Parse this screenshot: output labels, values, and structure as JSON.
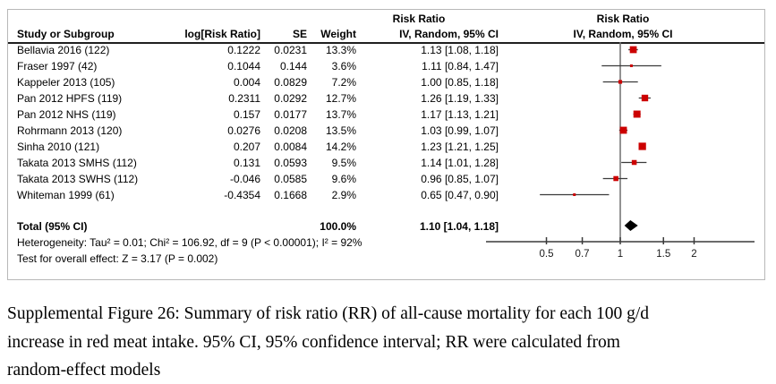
{
  "figure": {
    "header": {
      "study": "Study or Subgroup",
      "log_rr": "log[Risk Ratio]",
      "se": "SE",
      "weight": "Weight",
      "ci_col_line1": "Risk Ratio",
      "ci_col_line2": "IV, Random, 95% CI",
      "plot_col_line1": "Risk Ratio",
      "plot_col_line2": "IV, Random, 95% CI"
    },
    "footer": {
      "heterogeneity": "Heterogeneity: Tau² = 0.01; Chi² = 106.92, df = 9 (P < 0.00001); I² = 92%",
      "overall_test": "Test for overall effect: Z = 3.17 (P = 0.002)"
    }
  },
  "chart_data": {
    "type": "forest",
    "effect_measure": "Risk Ratio",
    "model": "IV, Random, 95% CI",
    "x_scale": "log",
    "x_ticks": [
      0.5,
      0.7,
      1,
      1.5,
      2
    ],
    "x_tick_labels": [
      "0.5",
      "0.7",
      "1",
      "1.5",
      "2"
    ],
    "null_value": 1,
    "marker_color": "#cc0000",
    "diamond_color": "#000000",
    "studies": [
      {
        "study": "Bellavia 2016 (122)",
        "log_rr": "0.1222",
        "se": "0.0231",
        "weight": "13.3%",
        "weight_pct": 13.3,
        "ci_text": "1.13 [1.08, 1.18]",
        "rr": 1.13,
        "lo": 1.08,
        "hi": 1.18
      },
      {
        "study": "Fraser 1997 (42)",
        "log_rr": "0.1044",
        "se": "0.144",
        "weight": "3.6%",
        "weight_pct": 3.6,
        "ci_text": "1.11 [0.84, 1.47]",
        "rr": 1.11,
        "lo": 0.84,
        "hi": 1.47
      },
      {
        "study": "Kappeler 2013 (105)",
        "log_rr": "0.004",
        "se": "0.0829",
        "weight": "7.2%",
        "weight_pct": 7.2,
        "ci_text": "1.00 [0.85, 1.18]",
        "rr": 1.0,
        "lo": 0.85,
        "hi": 1.18
      },
      {
        "study": "Pan 2012 HPFS (119)",
        "log_rr": "0.2311",
        "se": "0.0292",
        "weight": "12.7%",
        "weight_pct": 12.7,
        "ci_text": "1.26 [1.19, 1.33]",
        "rr": 1.26,
        "lo": 1.19,
        "hi": 1.33
      },
      {
        "study": "Pan 2012 NHS (119)",
        "log_rr": "0.157",
        "se": "0.0177",
        "weight": "13.7%",
        "weight_pct": 13.7,
        "ci_text": "1.17 [1.13, 1.21]",
        "rr": 1.17,
        "lo": 1.13,
        "hi": 1.21
      },
      {
        "study": "Rohrmann 2013 (120)",
        "log_rr": "0.0276",
        "se": "0.0208",
        "weight": "13.5%",
        "weight_pct": 13.5,
        "ci_text": "1.03 [0.99, 1.07]",
        "rr": 1.03,
        "lo": 0.99,
        "hi": 1.07
      },
      {
        "study": "Sinha 2010 (121)",
        "log_rr": "0.207",
        "se": "0.0084",
        "weight": "14.2%",
        "weight_pct": 14.2,
        "ci_text": "1.23 [1.21, 1.25]",
        "rr": 1.23,
        "lo": 1.21,
        "hi": 1.25
      },
      {
        "study": "Takata 2013 SMHS (112)",
        "log_rr": "0.131",
        "se": "0.0593",
        "weight": "9.5%",
        "weight_pct": 9.5,
        "ci_text": "1.14 [1.01, 1.28]",
        "rr": 1.14,
        "lo": 1.01,
        "hi": 1.28
      },
      {
        "study": "Takata 2013 SWHS (112)",
        "log_rr": "-0.046",
        "se": "0.0585",
        "weight": "9.6%",
        "weight_pct": 9.6,
        "ci_text": "0.96 [0.85, 1.07]",
        "rr": 0.96,
        "lo": 0.85,
        "hi": 1.07
      },
      {
        "study": "Whiteman 1999 (61)",
        "log_rr": "-0.4354",
        "se": "0.1668",
        "weight": "2.9%",
        "weight_pct": 2.9,
        "ci_text": "0.65 [0.47, 0.90]",
        "rr": 0.65,
        "lo": 0.47,
        "hi": 0.9
      }
    ],
    "total": {
      "label": "Total (95% CI)",
      "weight": "100.0%",
      "ci_text": "1.10 [1.04, 1.18]",
      "rr": 1.1,
      "lo": 1.04,
      "hi": 1.18
    }
  },
  "caption": {
    "line1": "Supplemental Figure 26: Summary of risk ratio (RR) of all-cause mortality for each 100 g/d",
    "line2": "increase in red meat intake. 95% CI, 95% confidence interval; RR were calculated from",
    "line3": "random-effect models"
  }
}
